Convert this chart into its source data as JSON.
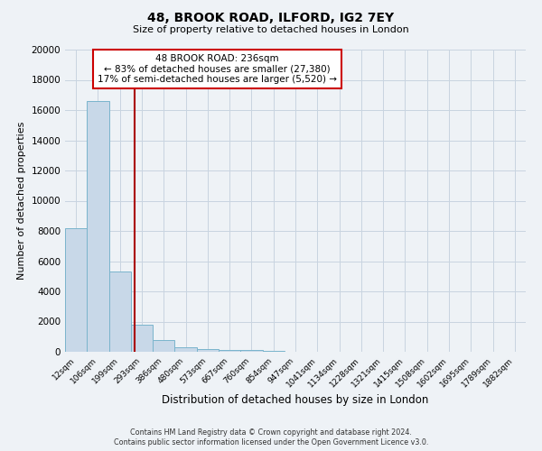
{
  "title": "48, BROOK ROAD, ILFORD, IG2 7EY",
  "subtitle": "Size of property relative to detached houses in London",
  "xlabel": "Distribution of detached houses by size in London",
  "ylabel": "Number of detached properties",
  "bar_labels": [
    "12sqm",
    "106sqm",
    "199sqm",
    "293sqm",
    "386sqm",
    "480sqm",
    "573sqm",
    "667sqm",
    "760sqm",
    "854sqm",
    "947sqm",
    "1041sqm",
    "1134sqm",
    "1228sqm",
    "1321sqm",
    "1415sqm",
    "1508sqm",
    "1602sqm",
    "1695sqm",
    "1789sqm",
    "1882sqm"
  ],
  "bar_values": [
    8200,
    16600,
    5300,
    1800,
    800,
    280,
    200,
    130,
    100,
    80,
    0,
    0,
    0,
    0,
    0,
    0,
    0,
    0,
    0,
    0,
    0
  ],
  "bar_color": "#c8d8e8",
  "bar_edge_color": "#7ab4cc",
  "vline_x": 2.67,
  "vline_color": "#aa0000",
  "annotation_text": "48 BROOK ROAD: 236sqm\n← 83% of detached houses are smaller (27,380)\n17% of semi-detached houses are larger (5,520) →",
  "annotation_box_color": "white",
  "annotation_box_edge_color": "#cc0000",
  "ylim": [
    0,
    20000
  ],
  "yticks": [
    0,
    2000,
    4000,
    6000,
    8000,
    10000,
    12000,
    14000,
    16000,
    18000,
    20000
  ],
  "grid_color": "#c8d4e0",
  "background_color": "#eef2f6",
  "footer_line1": "Contains HM Land Registry data © Crown copyright and database right 2024.",
  "footer_line2": "Contains public sector information licensed under the Open Government Licence v3.0."
}
